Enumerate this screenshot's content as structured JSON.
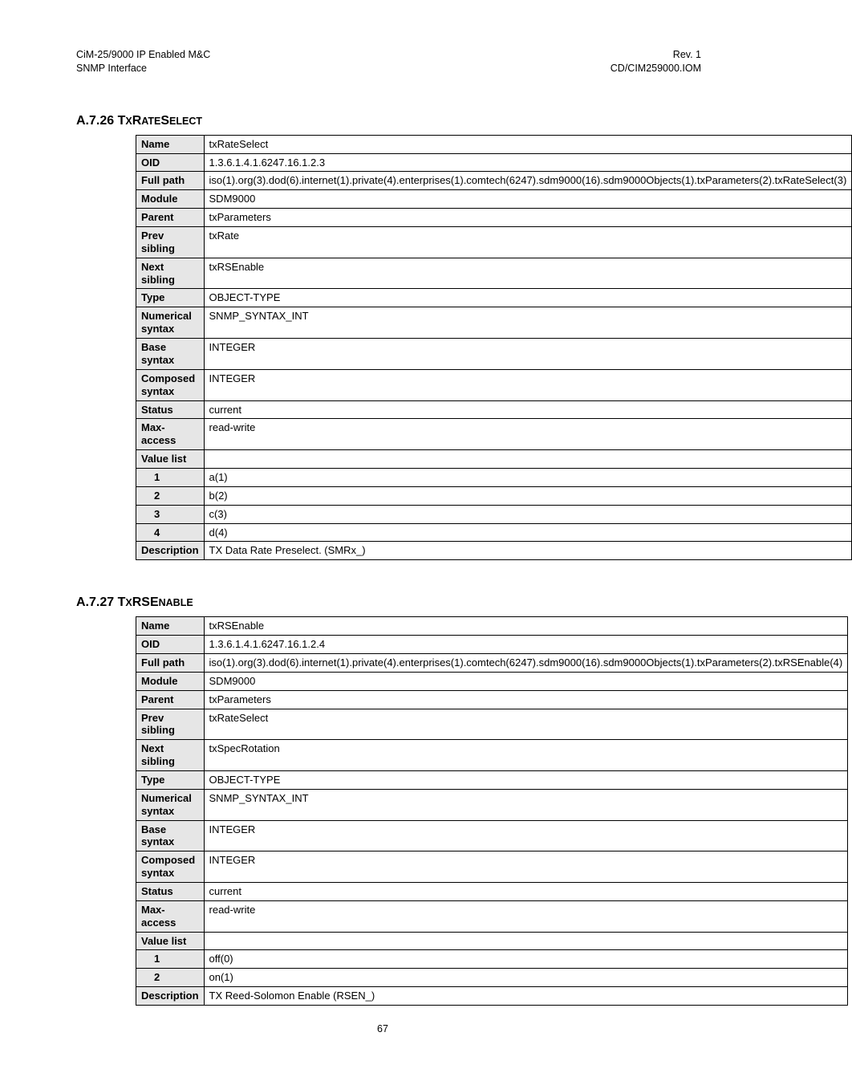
{
  "header": {
    "left_line1": "CiM-25/9000 IP Enabled M&C",
    "left_line2": "SNMP Interface",
    "right_line1": "Rev. 1",
    "right_line2": "CD/CIM259000.IOM"
  },
  "page_number": "67",
  "section1": {
    "heading_num": "A.7.26 ",
    "heading_big1": "T",
    "heading_sc1": "X",
    "heading_big2": "R",
    "heading_sc2": "ATE",
    "heading_big3": "S",
    "heading_sc3": "ELECT",
    "rows": [
      {
        "label": "Name",
        "value": "txRateSelect"
      },
      {
        "label": "OID",
        "value": "1.3.6.1.4.1.6247.16.1.2.3"
      },
      {
        "label": "Full path",
        "value": "iso(1).org(3).dod(6).internet(1).private(4).enterprises(1).comtech(6247).sdm9000(16).sdm9000Objects(1).txParameters(2).txRateSelect(3)"
      },
      {
        "label": "Module",
        "value": "SDM9000"
      },
      {
        "label": "Parent",
        "value": "txParameters"
      },
      {
        "label": "Prev sibling",
        "value": "txRate"
      },
      {
        "label": "Next sibling",
        "value": "txRSEnable"
      },
      {
        "label": "Type",
        "value": "OBJECT-TYPE"
      },
      {
        "label": "Numerical syntax",
        "value": "SNMP_SYNTAX_INT"
      },
      {
        "label": "Base syntax",
        "value": "INTEGER"
      },
      {
        "label": "Composed syntax",
        "value": "INTEGER"
      },
      {
        "label": "Status",
        "value": "current"
      },
      {
        "label": "Max-access",
        "value": "read-write"
      },
      {
        "label": "Value list",
        "value": ""
      },
      {
        "label": "1",
        "value": "a(1)",
        "sub": true
      },
      {
        "label": "2",
        "value": "b(2)",
        "sub": true
      },
      {
        "label": "3",
        "value": "c(3)",
        "sub": true
      },
      {
        "label": "4",
        "value": "d(4)",
        "sub": true
      },
      {
        "label": "Description",
        "value": "TX Data Rate Preselect. (SMRx_)"
      }
    ]
  },
  "section2": {
    "heading_num": "A.7.27 ",
    "heading_big1": "T",
    "heading_sc1": "X",
    "heading_big2": "RSE",
    "heading_sc2": "NABLE",
    "rows": [
      {
        "label": "Name",
        "value": "txRSEnable"
      },
      {
        "label": "OID",
        "value": "1.3.6.1.4.1.6247.16.1.2.4"
      },
      {
        "label": "Full path",
        "value": "iso(1).org(3).dod(6).internet(1).private(4).enterprises(1).comtech(6247).sdm9000(16).sdm9000Objects(1).txParameters(2).txRSEnable(4)"
      },
      {
        "label": "Module",
        "value": "SDM9000"
      },
      {
        "label": "Parent",
        "value": "txParameters"
      },
      {
        "label": "Prev sibling",
        "value": "txRateSelect"
      },
      {
        "label": "Next sibling",
        "value": "txSpecRotation"
      },
      {
        "label": "Type",
        "value": "OBJECT-TYPE"
      },
      {
        "label": "Numerical syntax",
        "value": "SNMP_SYNTAX_INT"
      },
      {
        "label": "Base syntax",
        "value": "INTEGER"
      },
      {
        "label": "Composed syntax",
        "value": "INTEGER"
      },
      {
        "label": "Status",
        "value": "current"
      },
      {
        "label": "Max-access",
        "value": "read-write"
      },
      {
        "label": "Value list",
        "value": ""
      },
      {
        "label": "1",
        "value": "off(0)",
        "sub": true
      },
      {
        "label": "2",
        "value": "on(1)",
        "sub": true
      },
      {
        "label": "Description",
        "value": "TX Reed-Solomon Enable (RSEN_)"
      }
    ]
  }
}
